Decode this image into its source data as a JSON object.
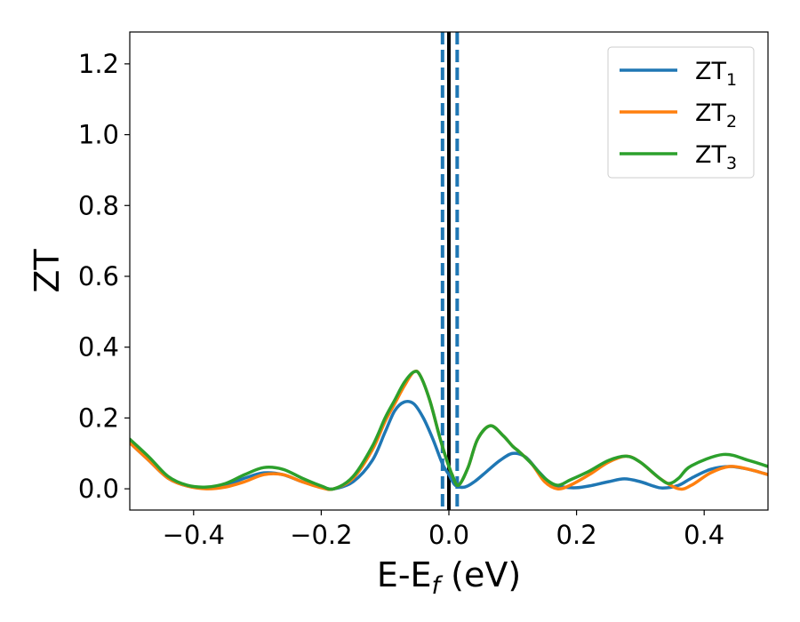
{
  "chart_data": {
    "type": "line",
    "xlabel_main": "E-E",
    "xlabel_sub": "f",
    "xlabel_unit": " (eV)",
    "ylabel": "ZT",
    "xlim": [
      -0.5,
      0.5
    ],
    "ylim": [
      -0.06,
      1.29
    ],
    "xticks": [
      -0.4,
      -0.2,
      0.0,
      0.2,
      0.4
    ],
    "xtick_labels": [
      "−0.4",
      "−0.2",
      "0.0",
      "0.2",
      "0.4"
    ],
    "yticks": [
      0.0,
      0.2,
      0.4,
      0.6,
      0.8,
      1.0,
      1.2
    ],
    "ytick_labels": [
      "0.0",
      "0.2",
      "0.4",
      "0.6",
      "0.8",
      "1.0",
      "1.2"
    ],
    "legend_position": "top-right",
    "vlines": [
      {
        "x": 0.0,
        "color": "#000000",
        "style": "solid"
      },
      {
        "x": -0.01,
        "color": "#1f77b4",
        "style": "dashed"
      },
      {
        "x": 0.0,
        "color": "#000000",
        "style": "dashed"
      },
      {
        "x": 0.013,
        "color": "#1f77b4",
        "style": "dashed"
      }
    ],
    "series": [
      {
        "name": "ZT",
        "sub": "1",
        "color": "#1f77b4",
        "x": [
          -0.5,
          -0.47,
          -0.44,
          -0.41,
          -0.38,
          -0.35,
          -0.32,
          -0.29,
          -0.26,
          -0.23,
          -0.2,
          -0.18,
          -0.15,
          -0.12,
          -0.1,
          -0.085,
          -0.07,
          -0.055,
          -0.04,
          -0.025,
          -0.01,
          0.0,
          0.01,
          0.025,
          0.04,
          0.06,
          0.08,
          0.1,
          0.12,
          0.14,
          0.16,
          0.18,
          0.2,
          0.22,
          0.25,
          0.275,
          0.3,
          0.32,
          0.335,
          0.36,
          0.38,
          0.41,
          0.44,
          0.47,
          0.5
        ],
        "y": [
          0.13,
          0.08,
          0.03,
          0.008,
          0.003,
          0.01,
          0.03,
          0.045,
          0.04,
          0.02,
          0.005,
          0.0,
          0.02,
          0.08,
          0.16,
          0.22,
          0.245,
          0.24,
          0.2,
          0.14,
          0.07,
          0.04,
          0.01,
          0.005,
          0.02,
          0.05,
          0.08,
          0.1,
          0.09,
          0.05,
          0.015,
          0.005,
          0.003,
          0.008,
          0.02,
          0.028,
          0.02,
          0.008,
          0.002,
          0.01,
          0.03,
          0.055,
          0.063,
          0.055,
          0.04
        ]
      },
      {
        "name": "ZT",
        "sub": "2",
        "color": "#ff7f0e",
        "x": [
          -0.5,
          -0.47,
          -0.44,
          -0.41,
          -0.38,
          -0.35,
          -0.32,
          -0.29,
          -0.26,
          -0.23,
          -0.2,
          -0.18,
          -0.15,
          -0.12,
          -0.1,
          -0.085,
          -0.07,
          -0.055,
          -0.045,
          -0.03,
          -0.015,
          -0.005,
          0.005,
          0.015,
          0.03,
          0.045,
          0.065,
          0.085,
          0.1,
          0.11,
          0.13,
          0.15,
          0.17,
          0.19,
          0.22,
          0.25,
          0.278,
          0.3,
          0.33,
          0.36,
          0.38,
          0.41,
          0.44,
          0.47,
          0.5
        ],
        "y": [
          0.13,
          0.08,
          0.03,
          0.008,
          0.0,
          0.005,
          0.02,
          0.04,
          0.04,
          0.02,
          0.003,
          0.0,
          0.03,
          0.11,
          0.19,
          0.24,
          0.29,
          0.33,
          0.32,
          0.25,
          0.15,
          0.09,
          0.04,
          0.01,
          0.06,
          0.14,
          0.178,
          0.15,
          0.12,
          0.105,
          0.07,
          0.02,
          0.0,
          0.01,
          0.04,
          0.075,
          0.092,
          0.075,
          0.03,
          0.0,
          0.01,
          0.045,
          0.063,
          0.055,
          0.04
        ]
      },
      {
        "name": "ZT",
        "sub": "3",
        "color": "#2ca02c",
        "x": [
          -0.5,
          -0.47,
          -0.44,
          -0.41,
          -0.38,
          -0.35,
          -0.32,
          -0.29,
          -0.26,
          -0.23,
          -0.2,
          -0.18,
          -0.15,
          -0.12,
          -0.1,
          -0.085,
          -0.07,
          -0.055,
          -0.045,
          -0.03,
          -0.015,
          -0.005,
          0.005,
          0.015,
          0.03,
          0.045,
          0.065,
          0.085,
          0.1,
          0.11,
          0.13,
          0.15,
          0.17,
          0.19,
          0.22,
          0.25,
          0.278,
          0.3,
          0.33,
          0.345,
          0.36,
          0.38,
          0.43,
          0.47,
          0.5
        ],
        "y": [
          0.14,
          0.09,
          0.035,
          0.01,
          0.005,
          0.015,
          0.04,
          0.06,
          0.055,
          0.03,
          0.008,
          0.0,
          0.035,
          0.12,
          0.2,
          0.25,
          0.3,
          0.33,
          0.32,
          0.25,
          0.15,
          0.09,
          0.04,
          0.01,
          0.06,
          0.14,
          0.178,
          0.15,
          0.12,
          0.105,
          0.07,
          0.03,
          0.01,
          0.025,
          0.05,
          0.08,
          0.092,
          0.075,
          0.03,
          0.015,
          0.03,
          0.065,
          0.097,
          0.08,
          0.063
        ]
      }
    ]
  }
}
